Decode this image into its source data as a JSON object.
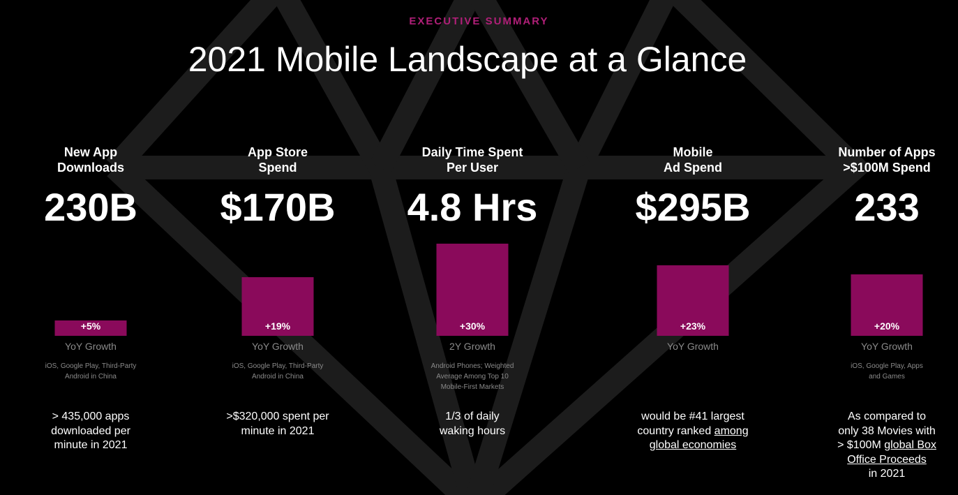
{
  "header": {
    "eyebrow": "EXECUTIVE SUMMARY",
    "title": "2021 Mobile Landscape at a Glance"
  },
  "colors": {
    "accent": "#8a0a5b",
    "eyebrow": "#b01f78",
    "muted": "#8a8a8a",
    "diamond": "#1c1c1c"
  },
  "metrics": [
    {
      "label_line1": "New App",
      "label_line2": "Downloads",
      "value": "230B",
      "growth": "+5%",
      "growth_fraction": 0.05,
      "growth_label": "YoY Growth",
      "source_line1": "iOS, Google Play, Third-Party",
      "source_line2": "Android in China",
      "source_line3": "",
      "fact_line1": "> 435,000 apps",
      "fact_line2": "downloaded per",
      "fact_line3": "minute in 2021",
      "fact_line4": "",
      "fact_line5": ""
    },
    {
      "label_line1": "App Store",
      "label_line2": "Spend",
      "value": "$170B",
      "growth": "+19%",
      "growth_fraction": 0.19,
      "growth_label": "YoY Growth",
      "source_line1": "iOS, Google Play, Third-Party",
      "source_line2": "Android in China",
      "source_line3": "",
      "fact_line1": ">$320,000 spent per",
      "fact_line2": "minute in 2021",
      "fact_line3": "",
      "fact_line4": "",
      "fact_line5": ""
    },
    {
      "label_line1": "Daily Time Spent",
      "label_line2": "Per User",
      "value": "4.8 Hrs",
      "growth": "+30%",
      "growth_fraction": 0.3,
      "growth_label": "2Y Growth",
      "source_line1": "Android Phones; Weighted",
      "source_line2": "Average Among Top 10",
      "source_line3": "Mobile-First  Markets",
      "fact_line1": "1/3 of daily",
      "fact_line2": "waking hours",
      "fact_line3": "",
      "fact_line4": "",
      "fact_line5": ""
    },
    {
      "label_line1": "Mobile",
      "label_line2": "Ad Spend",
      "value": "$295B",
      "growth": "+23%",
      "growth_fraction": 0.23,
      "growth_label": "YoY Growth",
      "source_line1": "",
      "source_line2": "",
      "source_line3": "",
      "fact_line1": "would be #41 largest",
      "fact_line2": "country ranked ",
      "fact_link2": "among",
      "fact_line3": "",
      "fact_link3": "global economies",
      "fact_line4": "",
      "fact_line5": ""
    },
    {
      "label_line1": "Number of Apps",
      "label_line2": ">$100M Spend",
      "value": "233",
      "growth": "+20%",
      "growth_fraction": 0.2,
      "growth_label": "YoY Growth",
      "source_line1": "iOS, Google Play, Apps",
      "source_line2": "and Games",
      "source_line3": "",
      "fact_line1": "As compared to",
      "fact_line2": "only 38 Movies with",
      "fact_line3": "> $100M ",
      "fact_link3": "global Box",
      "fact_link4": "Office Proceeds",
      "fact_line5": "in 2021"
    }
  ]
}
